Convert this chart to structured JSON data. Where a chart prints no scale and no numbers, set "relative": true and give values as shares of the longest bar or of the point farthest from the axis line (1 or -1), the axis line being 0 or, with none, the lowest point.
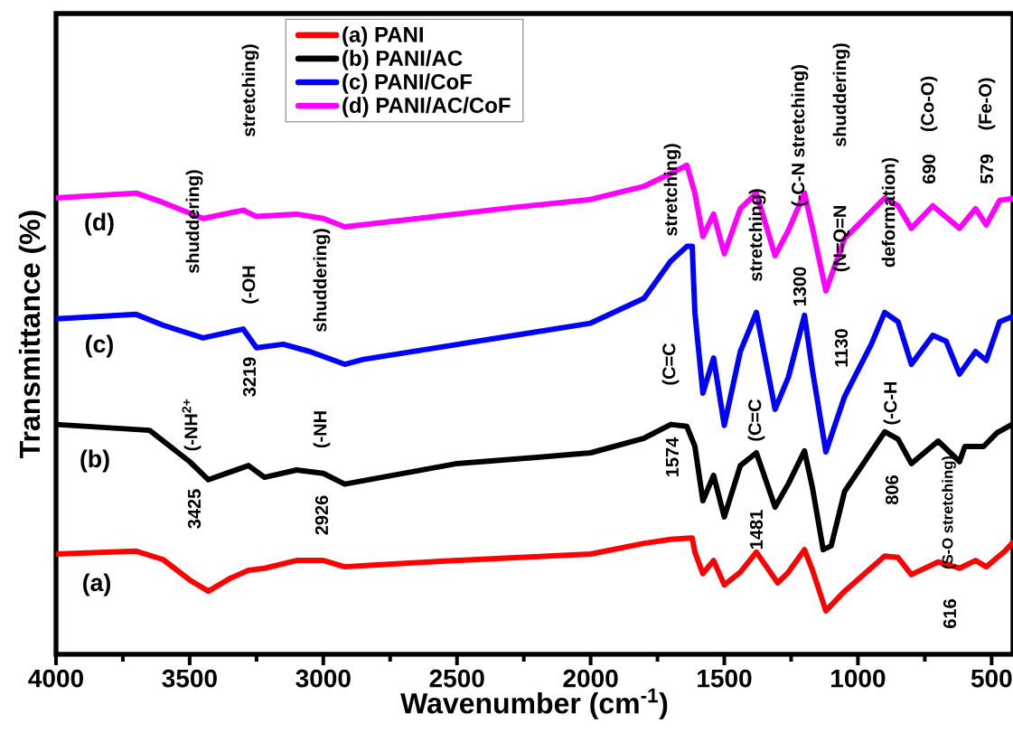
{
  "chart_data": {
    "type": "line",
    "relative": true,
    "xlabel": "Wavenumber (cm$^{-1}$)",
    "ylabel": "Transmittance (%)",
    "xlim": [
      4000,
      420
    ],
    "xticks": [
      4000,
      {
        "value": 3750,
        "label": null
      },
      3500,
      {
        "value": 3250,
        "label": null
      },
      3000,
      {
        "value": 2750,
        "label": null
      },
      2500,
      {
        "value": 2250,
        "label": null
      },
      2000,
      {
        "value": 1750,
        "label": null
      },
      1500,
      {
        "value": 1250,
        "label": null
      },
      1000,
      {
        "value": 750,
        "label": null
      },
      500
    ],
    "legend": "top",
    "line_style": "solid",
    "marker": "none",
    "grid": false,
    "series": [
      {
        "name": "(a) PANI",
        "color": "#ff0000",
        "x": [
          4000,
          3700,
          3600,
          3500,
          3430,
          3350,
          3280,
          3220,
          3100,
          3000,
          2920,
          2800,
          2500,
          2000,
          1800,
          1700,
          1620,
          1610,
          1580,
          1540,
          1500,
          1440,
          1380,
          1300,
          1260,
          1200,
          1170,
          1120,
          1050,
          900,
          850,
          800,
          700,
          620,
          560,
          520,
          450,
          420
        ],
        "values": [
          0.205,
          0.211,
          0.194,
          0.152,
          0.129,
          0.155,
          0.172,
          0.176,
          0.192,
          0.192,
          0.179,
          0.183,
          0.192,
          0.205,
          0.227,
          0.235,
          0.238,
          0.209,
          0.165,
          0.192,
          0.142,
          0.168,
          0.209,
          0.146,
          0.168,
          0.214,
          0.172,
          0.089,
          0.129,
          0.201,
          0.198,
          0.163,
          0.189,
          0.176,
          0.192,
          0.179,
          0.211,
          0.229
        ]
      },
      {
        "name": "(b) PANI/AC",
        "color": "#000000",
        "x": [
          4000,
          3650,
          3500,
          3430,
          3280,
          3220,
          3100,
          3000,
          2920,
          2800,
          2500,
          2200,
          2000,
          1800,
          1700,
          1640,
          1610,
          1580,
          1540,
          1500,
          1440,
          1380,
          1310,
          1260,
          1200,
          1170,
          1130,
          1100,
          1050,
          900,
          850,
          800,
          700,
          620,
          600,
          530,
          480,
          420
        ],
        "values": [
          0.47,
          0.458,
          0.394,
          0.357,
          0.386,
          0.362,
          0.377,
          0.37,
          0.348,
          0.36,
          0.39,
          0.403,
          0.412,
          0.442,
          0.47,
          0.466,
          0.425,
          0.314,
          0.366,
          0.281,
          0.386,
          0.412,
          0.301,
          0.349,
          0.416,
          0.34,
          0.214,
          0.222,
          0.333,
          0.455,
          0.44,
          0.39,
          0.436,
          0.394,
          0.425,
          0.425,
          0.453,
          0.471
        ]
      },
      {
        "name": "(c) PANI/CoF",
        "color": "#0000ff",
        "x": [
          4000,
          3700,
          3600,
          3450,
          3300,
          3250,
          3150,
          3050,
          2920,
          2850,
          2300,
          2000,
          1800,
          1700,
          1640,
          1620,
          1610,
          1580,
          1540,
          1500,
          1440,
          1380,
          1310,
          1260,
          1200,
          1170,
          1120,
          1050,
          950,
          900,
          850,
          800,
          720,
          670,
          620,
          560,
          520,
          470,
          420
        ],
        "values": [
          0.686,
          0.695,
          0.673,
          0.647,
          0.665,
          0.627,
          0.634,
          0.619,
          0.593,
          0.603,
          0.651,
          0.677,
          0.728,
          0.804,
          0.834,
          0.834,
          0.699,
          0.534,
          0.606,
          0.468,
          0.619,
          0.699,
          0.501,
          0.567,
          0.693,
          0.58,
          0.414,
          0.527,
          0.634,
          0.699,
          0.68,
          0.593,
          0.652,
          0.64,
          0.573,
          0.619,
          0.601,
          0.68,
          0.691
        ]
      },
      {
        "name": "(d) PANI/AC/CoF",
        "color": "#ff00ff",
        "x": [
          4000,
          3700,
          3600,
          3450,
          3300,
          3250,
          3100,
          3000,
          2920,
          2300,
          2000,
          1800,
          1700,
          1640,
          1610,
          1580,
          1540,
          1500,
          1440,
          1380,
          1310,
          1260,
          1200,
          1170,
          1120,
          1050,
          900,
          850,
          800,
          720,
          620,
          560,
          520,
          470,
          420
        ],
        "values": [
          0.933,
          0.943,
          0.924,
          0.891,
          0.908,
          0.895,
          0.9,
          0.891,
          0.874,
          0.913,
          0.93,
          0.957,
          0.983,
          1.0,
          0.943,
          0.854,
          0.9,
          0.819,
          0.911,
          0.943,
          0.815,
          0.867,
          0.943,
          0.871,
          0.743,
          0.85,
          0.933,
          0.917,
          0.871,
          0.917,
          0.871,
          0.911,
          0.878,
          0.928,
          0.932
        ]
      }
    ],
    "annotations": [
      "(a)",
      "(b)",
      "(c)",
      "(d)",
      "3425",
      "(-NH$^{2+}$",
      "shuddering)",
      "3219",
      "(-OH",
      "stretching)",
      "2926",
      "(-NH",
      "shuddering)",
      "1574",
      "(C=C",
      "stretching)",
      "1481",
      "(C=C",
      "stretching)",
      "1300",
      "(-C-N  stretching)",
      "1130",
      "(N=Q=N",
      "shuddering)",
      "806",
      "(-C-H",
      "deformation)",
      "690",
      "(Co-O)",
      "616",
      "(S-O  stretching)",
      "579",
      "(Fe-O)"
    ]
  }
}
